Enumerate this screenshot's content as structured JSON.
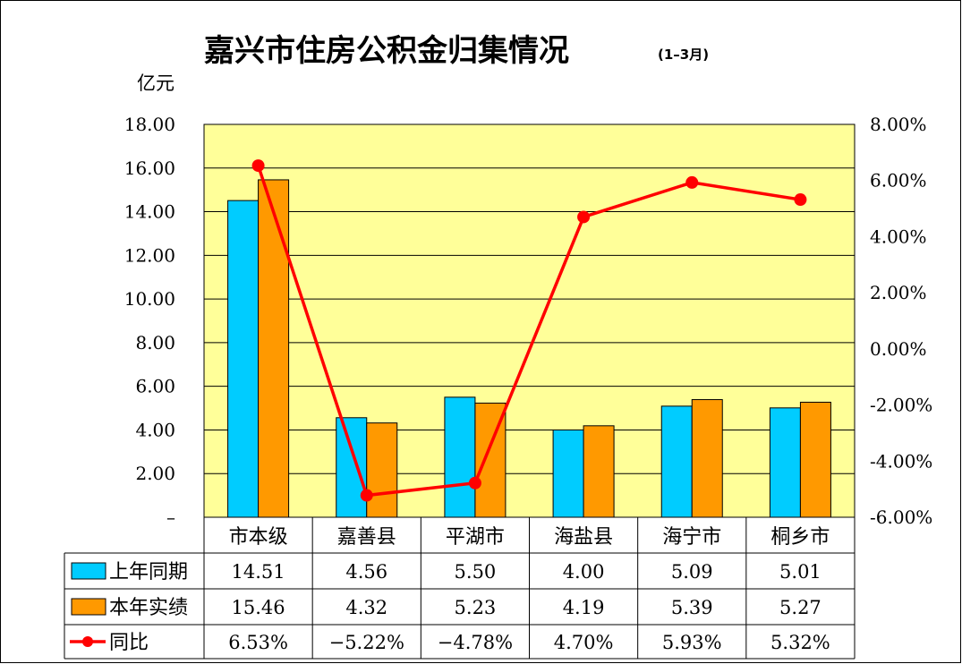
{
  "title": "嘉兴市住房公积金归集情况",
  "subtitle": "(1–3月)",
  "unit_label": "亿元",
  "colors": {
    "plot_bg": "#FFFF99",
    "series_prev": "#00CCFF",
    "series_curr": "#FF9900",
    "line": "#FF0000"
  },
  "chart_data": {
    "type": "bar",
    "categories": [
      "市本级",
      "嘉善县",
      "平湖市",
      "海盐县",
      "海宁市",
      "桐乡市"
    ],
    "series": [
      {
        "name": "上年同期",
        "values": [
          14.51,
          4.56,
          5.5,
          4.0,
          5.09,
          5.01
        ],
        "labels": [
          "14.51",
          "4.56",
          "5.50",
          "4.00",
          "5.09",
          "5.01"
        ]
      },
      {
        "name": "本年实绩",
        "values": [
          15.46,
          4.32,
          5.23,
          4.19,
          5.39,
          5.27
        ],
        "labels": [
          "15.46",
          "4.32",
          "5.23",
          "4.19",
          "5.39",
          "5.27"
        ]
      }
    ],
    "line_series": {
      "name": "同比",
      "type": "line",
      "axis": "right",
      "values": [
        6.53,
        -5.22,
        -4.78,
        4.7,
        5.93,
        5.32
      ],
      "labels": [
        "6.53%",
        "−5.22%",
        "−4.78%",
        "4.70%",
        "5.93%",
        "5.32%"
      ]
    },
    "left_axis": {
      "ylim": [
        0,
        18
      ],
      "ticks": [
        "–",
        "2.00",
        "4.00",
        "6.00",
        "8.00",
        "10.00",
        "12.00",
        "14.00",
        "16.00",
        "18.00"
      ]
    },
    "right_axis": {
      "ylim": [
        -6,
        8
      ],
      "ticks": [
        "-6.00%",
        "-4.00%",
        "-2.00%",
        "0.00%",
        "2.00%",
        "4.00%",
        "6.00%",
        "8.00%"
      ]
    },
    "grid": true,
    "legend": "data-table"
  }
}
